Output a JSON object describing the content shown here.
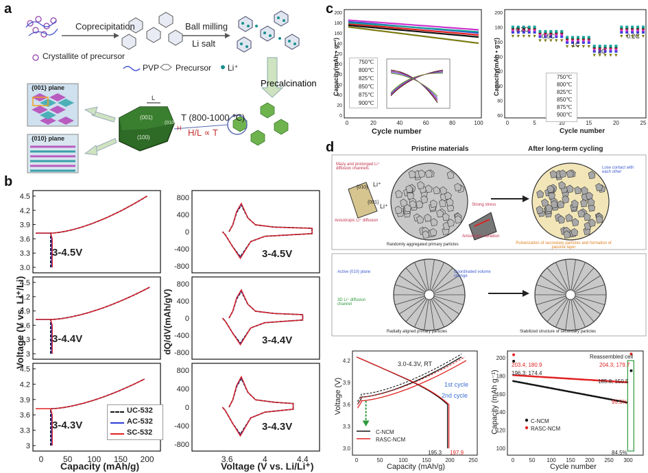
{
  "panel_labels": {
    "a": "a",
    "b": "b",
    "c": "c",
    "d": "d"
  },
  "panel_a": {
    "steps": [
      "Coprecipitation",
      "Ball milling",
      "Li salt",
      "Precalcination"
    ],
    "legend": [
      "Crystallite of precursor",
      "PVP",
      "Precursor",
      "Li⁺"
    ],
    "planes": [
      "{001} plane",
      "{010} plane"
    ],
    "hex_faces": [
      "(001)",
      "(100)",
      "(010)"
    ],
    "hex_dims": [
      "L",
      "H"
    ],
    "temperature": "T (800-1000 ℃)",
    "relation": "H/L ∝ T"
  },
  "panel_b": {
    "ylabel_left": "Voltage (V vs. Li⁺/Li)",
    "xlabel_left": "Capacity (mAh/g)",
    "ylabel_right": "dQ/dV(mAh/gV)",
    "xlabel_right": "Voltage (V vs. Li/Li⁺)",
    "ranges": [
      "3-4.5V",
      "3-4.4V",
      "3-4.3V"
    ],
    "legend": [
      "UC-532",
      "AC-532",
      "SC-532"
    ],
    "legend_colors": [
      "#111111",
      "#2a3bd6",
      "#e02020"
    ],
    "left_xticks": [
      "0",
      "50",
      "100",
      "150",
      "200"
    ],
    "left_yticks": [
      "4.5",
      "4.2",
      "3.9",
      "3.6",
      "3.3",
      "3.0"
    ],
    "left_yticks_sub": [
      "4.5",
      "4.2",
      "3.9",
      "3.6",
      "3.3",
      "3"
    ],
    "right_xticks": [
      "3.6",
      "4",
      "4.4"
    ],
    "right_yticks": [
      "800",
      "400",
      "0",
      "-400",
      "-800"
    ]
  },
  "panel_c": {
    "left": {
      "ylabel": "Capacity(mAh • g⁻¹)",
      "xlabel": "Cycle number",
      "xticks": [
        "0",
        "20",
        "40",
        "60",
        "80",
        "100"
      ],
      "yticks": [
        "200",
        "180",
        "160",
        "140",
        "120",
        "100",
        "80",
        "60",
        "40",
        "20",
        "0"
      ],
      "legend": [
        "750℃",
        "800℃",
        "825℃",
        "850℃",
        "875℃",
        "900℃"
      ],
      "colors": [
        "#111111",
        "#e02020",
        "#2a3bd6",
        "#cc33cc",
        "#1aa39a",
        "#7a7a10"
      ]
    },
    "right": {
      "ylabel": "Capacity(mAh • g⁻¹)",
      "xlabel": "Cycle number",
      "rates": [
        "0.2C",
        "0.5C",
        "1C",
        "2C",
        "0.2C"
      ],
      "xticks": [
        "0",
        "5",
        "10",
        "15",
        "20",
        "25"
      ],
      "yticks": [
        "200",
        "180",
        "160",
        "140",
        "120",
        "100",
        "80",
        "60"
      ],
      "legend": [
        "750℃",
        "800℃",
        "825℃",
        "850℃",
        "875℃",
        "900℃"
      ]
    }
  },
  "panel_d": {
    "header_left": "Pristine materials",
    "header_right": "After long-term cycling",
    "notes_top": [
      "Mazy and prolonged Li⁺ diffusion channels",
      "Anisotropic Li⁺ diffusion",
      "Strong stress",
      "Anisotropic variation",
      "Lose contact with each other",
      "Randomly aggregated primary particles",
      "Pulverization of secondary particles and formation of passive layer"
    ],
    "li_labels": [
      "{010}",
      "Li⁺",
      "{001}",
      "Li⁺"
    ],
    "notes_mid": [
      "Active {010} plane",
      "Coordinated volume change",
      "3D Li⁺ diffusion channel",
      "Radially aligned primary particles",
      "Stabilized structure of secondary particles"
    ],
    "bottom_left": {
      "ylabel": "Voltage (V)",
      "xlabel": "Capacity (mAh/g)",
      "title": "3.0-4.3V, RT",
      "xticks": [
        "0",
        "50",
        "100",
        "150",
        "200",
        "250"
      ],
      "yticks": [
        "4.2",
        "3.9",
        "3.6",
        "3.3",
        "3.0"
      ],
      "cycle1": "1st cycle",
      "cycle2": "2nd cycle",
      "legend": [
        "C-NCM",
        "RASC-NCM"
      ],
      "val_black": "195.3",
      "val_red": "197.9"
    },
    "bottom_right": {
      "ylabel": "Capacity (mAh g⁻¹)",
      "xlabel": "Cycle number",
      "reassembled": "Reassembled cell",
      "xticks": [
        "0",
        "50",
        "100",
        "150",
        "200",
        "250",
        "300"
      ],
      "yticks": [
        "200",
        "180",
        "160",
        "140",
        "120",
        "100"
      ],
      "legend": [
        "C-NCM",
        "RASC-NCM"
      ],
      "values": [
        "203.4; 180.9",
        "196.3; 174.4",
        "204.3; 179.7",
        "185.8; 150.5",
        "95.5%",
        "84.5%"
      ]
    }
  }
}
